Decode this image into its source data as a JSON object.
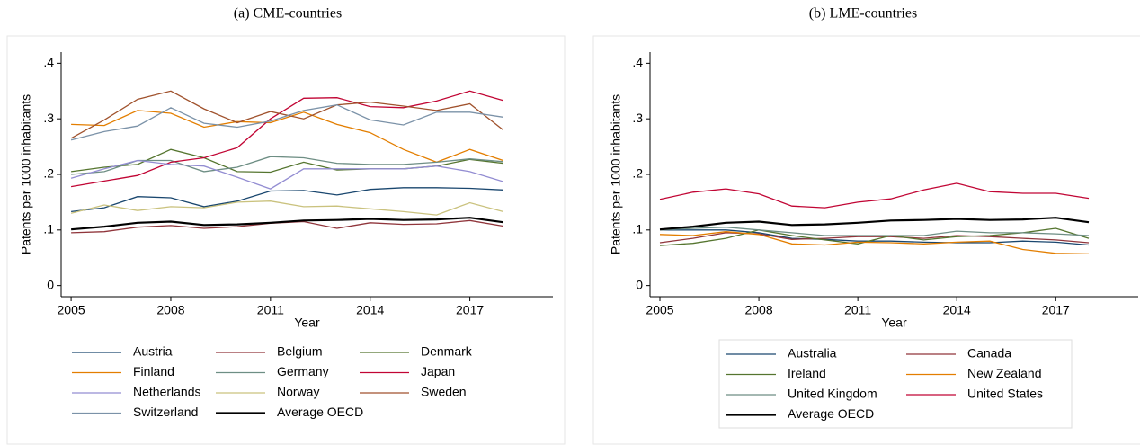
{
  "chart_data": [
    {
      "type": "line",
      "title": "(a) CME-countries",
      "xlabel": "Year",
      "ylabel": "Patents per 1000 inhabitants",
      "x": [
        2005,
        2006,
        2007,
        2008,
        2009,
        2010,
        2011,
        2012,
        2013,
        2014,
        2015,
        2016,
        2017,
        2018
      ],
      "xlim": [
        2004.7,
        2019.5
      ],
      "ylim": [
        -0.02,
        0.42
      ],
      "xticks": [
        2005,
        2008,
        2011,
        2014,
        2017
      ],
      "yticks": [
        0,
        {
          "value": 0.1,
          "label": ".1"
        },
        {
          "value": 0.2,
          "label": ".2"
        },
        {
          "value": 0.3,
          "label": ".3"
        },
        {
          "value": 0.4,
          "label": ".4"
        }
      ],
      "series": [
        {
          "name": "Austria",
          "color": "#1a476f",
          "values": [
            0.133,
            0.14,
            0.16,
            0.158,
            0.142,
            0.152,
            0.17,
            0.171,
            0.163,
            0.173,
            0.176,
            0.176,
            0.175,
            0.172
          ]
        },
        {
          "name": "Belgium",
          "color": "#90353b",
          "values": [
            0.095,
            0.097,
            0.105,
            0.108,
            0.103,
            0.106,
            0.112,
            0.115,
            0.103,
            0.113,
            0.11,
            0.111,
            0.117,
            0.107
          ]
        },
        {
          "name": "Denmark",
          "color": "#55752f",
          "values": [
            0.205,
            0.213,
            0.218,
            0.245,
            0.23,
            0.205,
            0.204,
            0.222,
            0.208,
            0.21,
            0.21,
            0.215,
            0.227,
            0.22
          ]
        },
        {
          "name": "Finland",
          "color": "#e37e00",
          "values": [
            0.29,
            0.288,
            0.315,
            0.31,
            0.285,
            0.295,
            0.293,
            0.312,
            0.29,
            0.275,
            0.245,
            0.222,
            0.245,
            0.225
          ]
        },
        {
          "name": "Germany",
          "color": "#6e8e84",
          "values": [
            0.2,
            0.205,
            0.225,
            0.225,
            0.205,
            0.213,
            0.232,
            0.23,
            0.22,
            0.218,
            0.218,
            0.222,
            0.228,
            0.223
          ]
        },
        {
          "name": "Japan",
          "color": "#c10534",
          "values": [
            0.178,
            0.188,
            0.198,
            0.222,
            0.23,
            0.248,
            0.3,
            0.337,
            0.338,
            0.322,
            0.32,
            0.332,
            0.35,
            0.333
          ]
        },
        {
          "name": "Netherlands",
          "color": "#938dd2",
          "values": [
            0.193,
            0.21,
            0.225,
            0.218,
            0.215,
            0.195,
            0.174,
            0.21,
            0.21,
            0.21,
            0.21,
            0.215,
            0.205,
            0.187
          ]
        },
        {
          "name": "Norway",
          "color": "#cac27e",
          "values": [
            0.13,
            0.145,
            0.135,
            0.142,
            0.14,
            0.15,
            0.152,
            0.142,
            0.143,
            0.138,
            0.133,
            0.127,
            0.149,
            0.133
          ]
        },
        {
          "name": "Sweden",
          "color": "#a0522d",
          "values": [
            0.265,
            0.298,
            0.335,
            0.35,
            0.318,
            0.293,
            0.313,
            0.3,
            0.325,
            0.33,
            0.323,
            0.315,
            0.327,
            0.28
          ]
        },
        {
          "name": "Switzerland",
          "color": "#7b92a8",
          "values": [
            0.262,
            0.277,
            0.287,
            0.32,
            0.292,
            0.285,
            0.296,
            0.315,
            0.325,
            0.298,
            0.289,
            0.312,
            0.312,
            0.303
          ]
        },
        {
          "name": "Average OECD",
          "color": "#000000",
          "values": [
            0.101,
            0.106,
            0.113,
            0.115,
            0.109,
            0.11,
            0.113,
            0.117,
            0.118,
            0.12,
            0.118,
            0.119,
            0.122,
            0.114
          ]
        }
      ]
    },
    {
      "type": "line",
      "title": "(b) LME-countries",
      "xlabel": "Year",
      "ylabel": "Patents per 1000 inhabitants",
      "x": [
        2005,
        2006,
        2007,
        2008,
        2009,
        2010,
        2011,
        2012,
        2013,
        2014,
        2015,
        2016,
        2017,
        2018
      ],
      "xlim": [
        2004.7,
        2019.5
      ],
      "ylim": [
        -0.02,
        0.42
      ],
      "xticks": [
        2005,
        2008,
        2011,
        2014,
        2017
      ],
      "yticks": [
        0,
        {
          "value": 0.1,
          "label": ".1"
        },
        {
          "value": 0.2,
          "label": ".2"
        },
        {
          "value": 0.3,
          "label": ".3"
        },
        {
          "value": 0.4,
          "label": ".4"
        }
      ],
      "series": [
        {
          "name": "Australia",
          "color": "#1a476f",
          "values": [
            0.1,
            0.1,
            0.1,
            0.095,
            0.085,
            0.083,
            0.08,
            0.08,
            0.078,
            0.077,
            0.077,
            0.08,
            0.078,
            0.073
          ]
        },
        {
          "name": "Canada",
          "color": "#90353b",
          "values": [
            0.077,
            0.085,
            0.095,
            0.093,
            0.083,
            0.085,
            0.088,
            0.088,
            0.085,
            0.09,
            0.088,
            0.085,
            0.082,
            0.077
          ]
        },
        {
          "name": "Ireland",
          "color": "#55752f",
          "values": [
            0.072,
            0.076,
            0.085,
            0.1,
            0.09,
            0.082,
            0.075,
            0.09,
            0.082,
            0.088,
            0.09,
            0.095,
            0.103,
            0.085
          ]
        },
        {
          "name": "New Zealand",
          "color": "#e37e00",
          "values": [
            0.092,
            0.09,
            0.097,
            0.092,
            0.075,
            0.073,
            0.078,
            0.077,
            0.075,
            0.078,
            0.08,
            0.065,
            0.058,
            0.057
          ]
        },
        {
          "name": "United Kingdom",
          "color": "#6e8e84",
          "values": [
            0.1,
            0.103,
            0.105,
            0.1,
            0.095,
            0.09,
            0.09,
            0.09,
            0.09,
            0.098,
            0.095,
            0.095,
            0.093,
            0.09
          ]
        },
        {
          "name": "United States",
          "color": "#c10534",
          "values": [
            0.155,
            0.168,
            0.174,
            0.165,
            0.143,
            0.14,
            0.15,
            0.156,
            0.172,
            0.184,
            0.169,
            0.166,
            0.166,
            0.157
          ]
        },
        {
          "name": "Average OECD",
          "color": "#000000",
          "values": [
            0.101,
            0.106,
            0.113,
            0.115,
            0.109,
            0.11,
            0.113,
            0.117,
            0.118,
            0.12,
            0.118,
            0.119,
            0.122,
            0.114
          ]
        }
      ]
    }
  ]
}
